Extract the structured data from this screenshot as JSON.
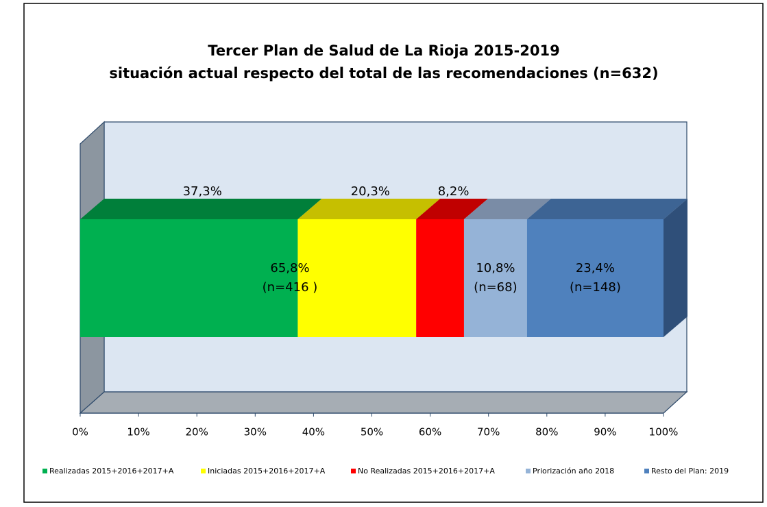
{
  "chart_data": {
    "type": "bar3d_stacked_horizontal",
    "title": "Tercer Plan de Salud de La Rioja 2015-2019",
    "subtitle": "situación actual respecto del total de las recomendaciones  (n=632)",
    "series": [
      {
        "name": "Realizadas 2015+2016+2017+A",
        "color": "#00b050",
        "top_color": "#007f3a",
        "values": [
          37.3
        ],
        "value_labels": [
          "37,3%"
        ]
      },
      {
        "name": "Iniciadas 2015+2016+2017+A",
        "color": "#ffff00",
        "top_color": "#c6bf00",
        "values": [
          20.3
        ],
        "value_labels": [
          "20,3%"
        ]
      },
      {
        "name": "No Realizadas 2015+2016+2017+A",
        "color": "#ff0000",
        "top_color": "#c00000",
        "values": [
          8.2
        ],
        "value_labels": [
          "8,2%"
        ]
      },
      {
        "name": "Priorización año 2018",
        "color": "#95b3d7",
        "top_color": "#7a8ca6",
        "values": [
          10.8
        ],
        "value_labels": [
          "10,8%"
        ],
        "n_labels": [
          "(n=68)"
        ]
      },
      {
        "name": "Resto del Plan: 2019",
        "color": "#4f81bd",
        "top_color": "#3d6494",
        "side_color": "#2f4f79",
        "values": [
          23.4
        ],
        "value_labels": [
          "23,4%"
        ],
        "n_labels": [
          "(n=148)"
        ]
      }
    ],
    "annotations": [
      {
        "lines": [
          "65,8%",
          "(n=416 )"
        ]
      }
    ],
    "xlim": [
      0,
      100
    ],
    "xticks": [
      {
        "value": 0,
        "label": "0%"
      },
      {
        "value": 10,
        "label": "10%"
      },
      {
        "value": 20,
        "label": "20%"
      },
      {
        "value": 30,
        "label": "30%"
      },
      {
        "value": 40,
        "label": "40%"
      },
      {
        "value": 50,
        "label": "50%"
      },
      {
        "value": 60,
        "label": "60%"
      },
      {
        "value": 70,
        "label": "70%"
      },
      {
        "value": 80,
        "label": "80%"
      },
      {
        "value": 90,
        "label": "90%"
      },
      {
        "value": 100,
        "label": "100%"
      }
    ],
    "legend": "bottom"
  }
}
